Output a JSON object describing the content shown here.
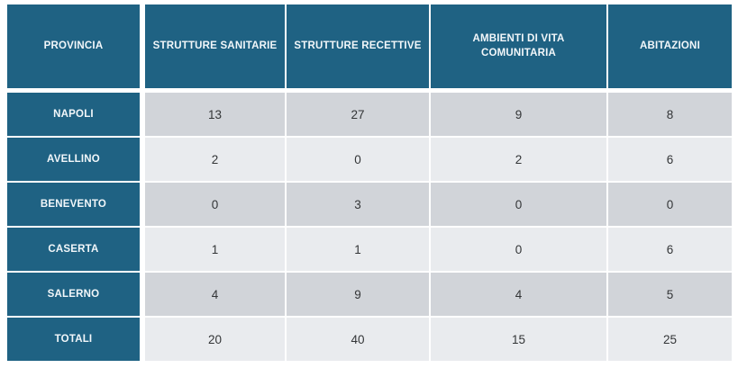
{
  "chart_data": {
    "type": "table",
    "columns": [
      "PROVINCIA",
      "STRUTTURE SANITARIE",
      "STRUTTURE RECETTIVE",
      "AMBIENTI DI VITA COMUNITARIA",
      "ABITAZIONI"
    ],
    "rows": [
      {
        "label": "NAPOLI",
        "values": [
          13,
          27,
          9,
          8
        ]
      },
      {
        "label": "AVELLINO",
        "values": [
          2,
          0,
          2,
          6
        ]
      },
      {
        "label": "BENEVENTO",
        "values": [
          0,
          3,
          0,
          0
        ]
      },
      {
        "label": "CASERTA",
        "values": [
          1,
          1,
          0,
          6
        ]
      },
      {
        "label": "SALERNO",
        "values": [
          4,
          9,
          4,
          5
        ]
      },
      {
        "label": "TOTALI",
        "values": [
          20,
          40,
          15,
          25
        ]
      }
    ],
    "layout_hints": {
      "header_position": "top",
      "row_striping": "dark-light-alternating",
      "grid": "white 2px separators"
    }
  },
  "colors": {
    "header_bg": "#1f6283",
    "header_text": "#f2f7fa",
    "row_dark_bg": "#d1d4d9",
    "row_light_bg": "#e9ebee",
    "value_text": "#333537",
    "separator": "#ffffff"
  }
}
